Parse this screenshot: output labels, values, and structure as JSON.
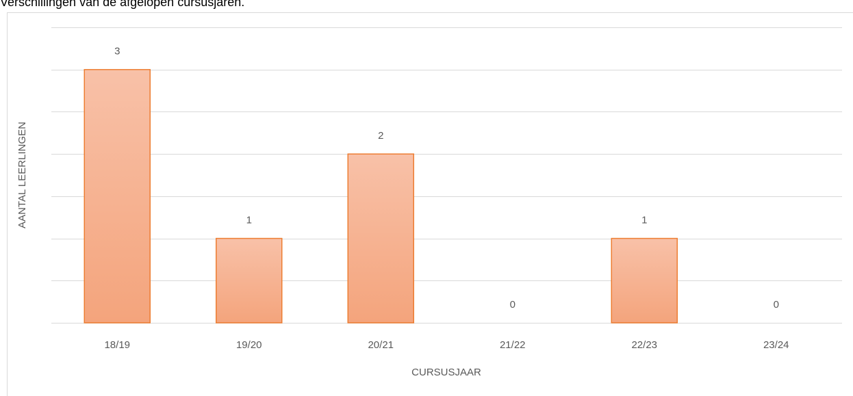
{
  "chart_data": {
    "type": "bar",
    "title": "Verschillingen van de afgelopen cursusjaren.",
    "x_label": "CURSUSJAAR",
    "y_label": "AANTAL LEERLINGEN",
    "categories": [
      "18/19",
      "19/20",
      "20/21",
      "21/22",
      "22/23",
      "23/24"
    ],
    "values": [
      3,
      1,
      2,
      0,
      1,
      0
    ],
    "color": "#ed7d31",
    "ylim": [
      0,
      3.5
    ],
    "yticks": [
      0,
      0.5,
      1,
      1.5,
      2,
      2.5,
      3,
      3.5
    ],
    "grid": true
  }
}
